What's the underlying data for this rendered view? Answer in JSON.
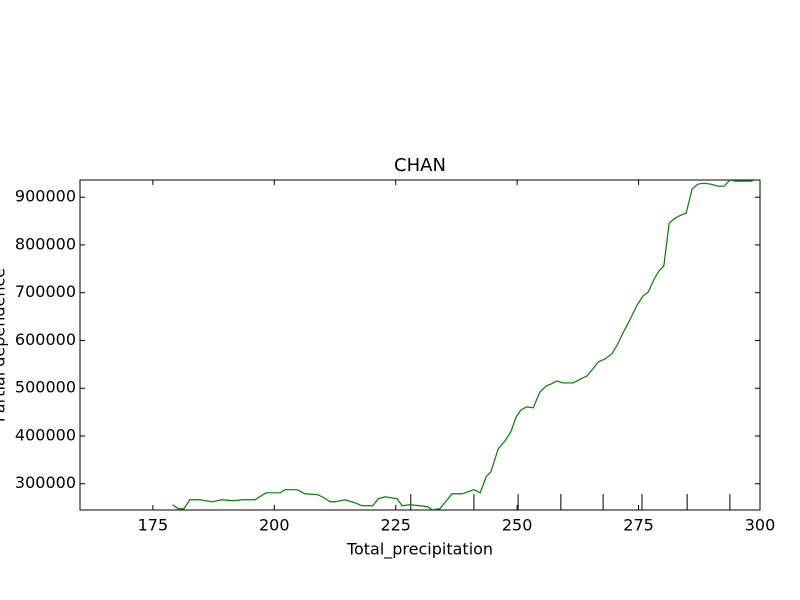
{
  "chart_data": {
    "type": "line",
    "title": "CHAN",
    "x_label": "Total_precipitation",
    "y_label": "Partial dependence",
    "x": [
      179.1,
      180.2,
      181.4,
      182.6,
      184.7,
      187.2,
      189.2,
      191.5,
      193.4,
      196.0,
      198.3,
      201.2,
      202.2,
      204.7,
      206.3,
      209.0,
      210.2,
      211.5,
      212.5,
      214.6,
      216.6,
      218.1,
      220.3,
      221.4,
      222.8,
      225.3,
      226.3,
      228.0,
      230.0,
      231.6,
      232.5,
      234.1,
      235.6,
      236.6,
      238.7,
      241.1,
      242.4,
      243.6,
      244.6,
      246.1,
      247.5,
      248.7,
      249.8,
      250.8,
      252.0,
      253.3,
      254.7,
      256.0,
      257.0,
      258.2,
      259.4,
      261.5,
      263.1,
      264.4,
      265.6,
      266.7,
      268.1,
      269.5,
      270.6,
      272.0,
      273.2,
      274.7,
      275.9,
      277.0,
      278.2,
      279.2,
      280.2,
      281.3,
      282.5,
      283.7,
      284.8,
      286.0,
      287.2,
      288.5,
      289.9,
      291.4,
      292.6,
      293.8,
      295.1,
      297.9,
      299.0
    ],
    "series": [
      {
        "color": "#008000",
        "values": [
          256000,
          247600,
          247600,
          266400,
          266400,
          262200,
          266400,
          264300,
          266400,
          266400,
          281000,
          281000,
          287500,
          287500,
          279000,
          277000,
          270700,
          262200,
          262200,
          266400,
          260100,
          253900,
          253900,
          268500,
          272700,
          268500,
          253900,
          256000,
          253900,
          251800,
          245600,
          247600,
          266400,
          279000,
          279000,
          287500,
          281000,
          314400,
          324900,
          373000,
          389800,
          408600,
          440000,
          454600,
          460900,
          458800,
          492300,
          504800,
          509000,
          515300,
          511100,
          511100,
          519500,
          525800,
          540400,
          555000,
          561300,
          571800,
          590500,
          619800,
          642800,
          674200,
          693000,
          701400,
          728500,
          745300,
          755800,
          845600,
          856100,
          862400,
          866600,
          916700,
          927200,
          929300,
          927200,
          923000,
          923000,
          935600,
          933500,
          933500,
          935600
        ]
      }
    ],
    "deciles": [
      228.1,
      241.1,
      250.2,
      259.0,
      267.7,
      275.7,
      285.0,
      293.8
    ],
    "xlim": [
      160,
      300
    ],
    "ylim": [
      245000,
      936000
    ],
    "xticks": [
      175,
      200,
      225,
      250,
      275,
      300
    ],
    "yticks": [
      300000,
      400000,
      500000,
      600000,
      700000,
      800000,
      900000
    ]
  }
}
